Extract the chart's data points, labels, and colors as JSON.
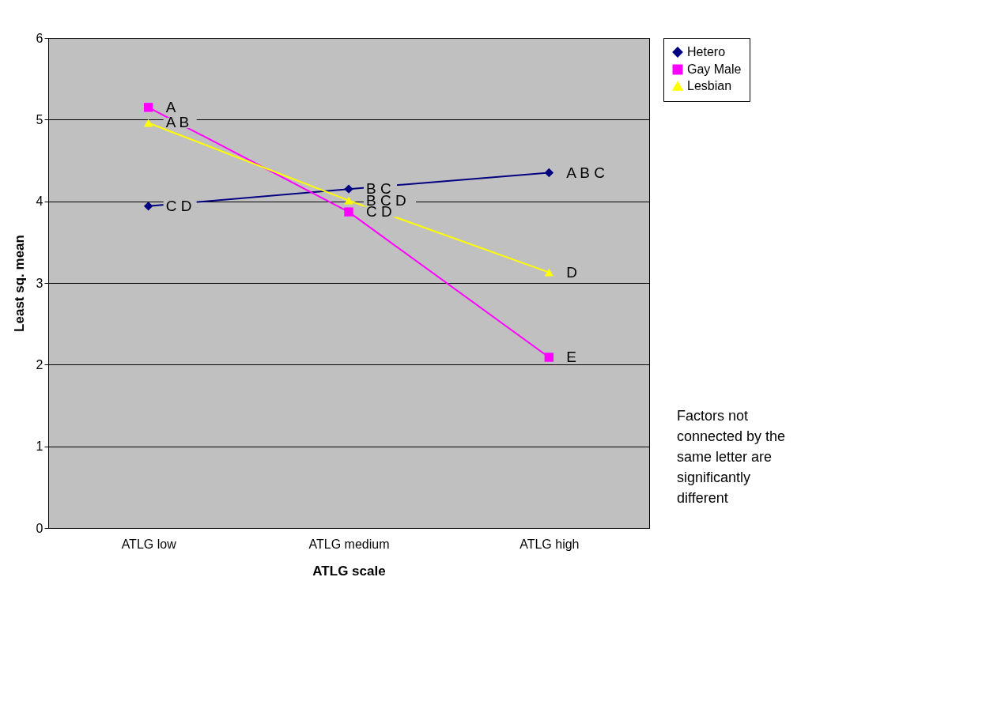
{
  "chart_data": {
    "type": "line",
    "xlabel": "ATLG scale",
    "ylabel": "Least sq. mean",
    "categories": [
      "ATLG low",
      "ATLG medium",
      "ATLG high"
    ],
    "series": [
      {
        "name": "Hetero",
        "color": "#000080",
        "marker": "diamond",
        "values": [
          3.94,
          4.15,
          4.35
        ]
      },
      {
        "name": "Gay Male",
        "color": "#ff00ff",
        "marker": "square",
        "values": [
          5.15,
          3.87,
          2.09
        ]
      },
      {
        "name": "Lesbian",
        "color": "#ffff00",
        "marker": "triangle",
        "values": [
          4.96,
          4.01,
          3.13
        ]
      }
    ],
    "ylim": [
      0,
      6
    ],
    "yticks": [
      0,
      1,
      2,
      3,
      4,
      5,
      6
    ],
    "grid": "y",
    "legend": "right",
    "annotations": [
      {
        "text": "A",
        "x": "ATLG low",
        "y": 5.15
      },
      {
        "text": "A B",
        "x": "ATLG low",
        "y": 4.96
      },
      {
        "text": "C D",
        "x": "ATLG low",
        "y": 3.94
      },
      {
        "text": "B C",
        "x": "ATLG medium",
        "y": 4.15
      },
      {
        "text": "B C D",
        "x": "ATLG medium",
        "y": 4.01
      },
      {
        "text": "C D",
        "x": "ATLG medium",
        "y": 3.87
      },
      {
        "text": "A B C",
        "x": "ATLG high",
        "y": 4.35
      },
      {
        "text": "D",
        "x": "ATLG high",
        "y": 3.13
      },
      {
        "text": "E",
        "x": "ATLG high",
        "y": 2.09
      },
      "Factors not connected by the same letter are significantly different"
    ]
  }
}
